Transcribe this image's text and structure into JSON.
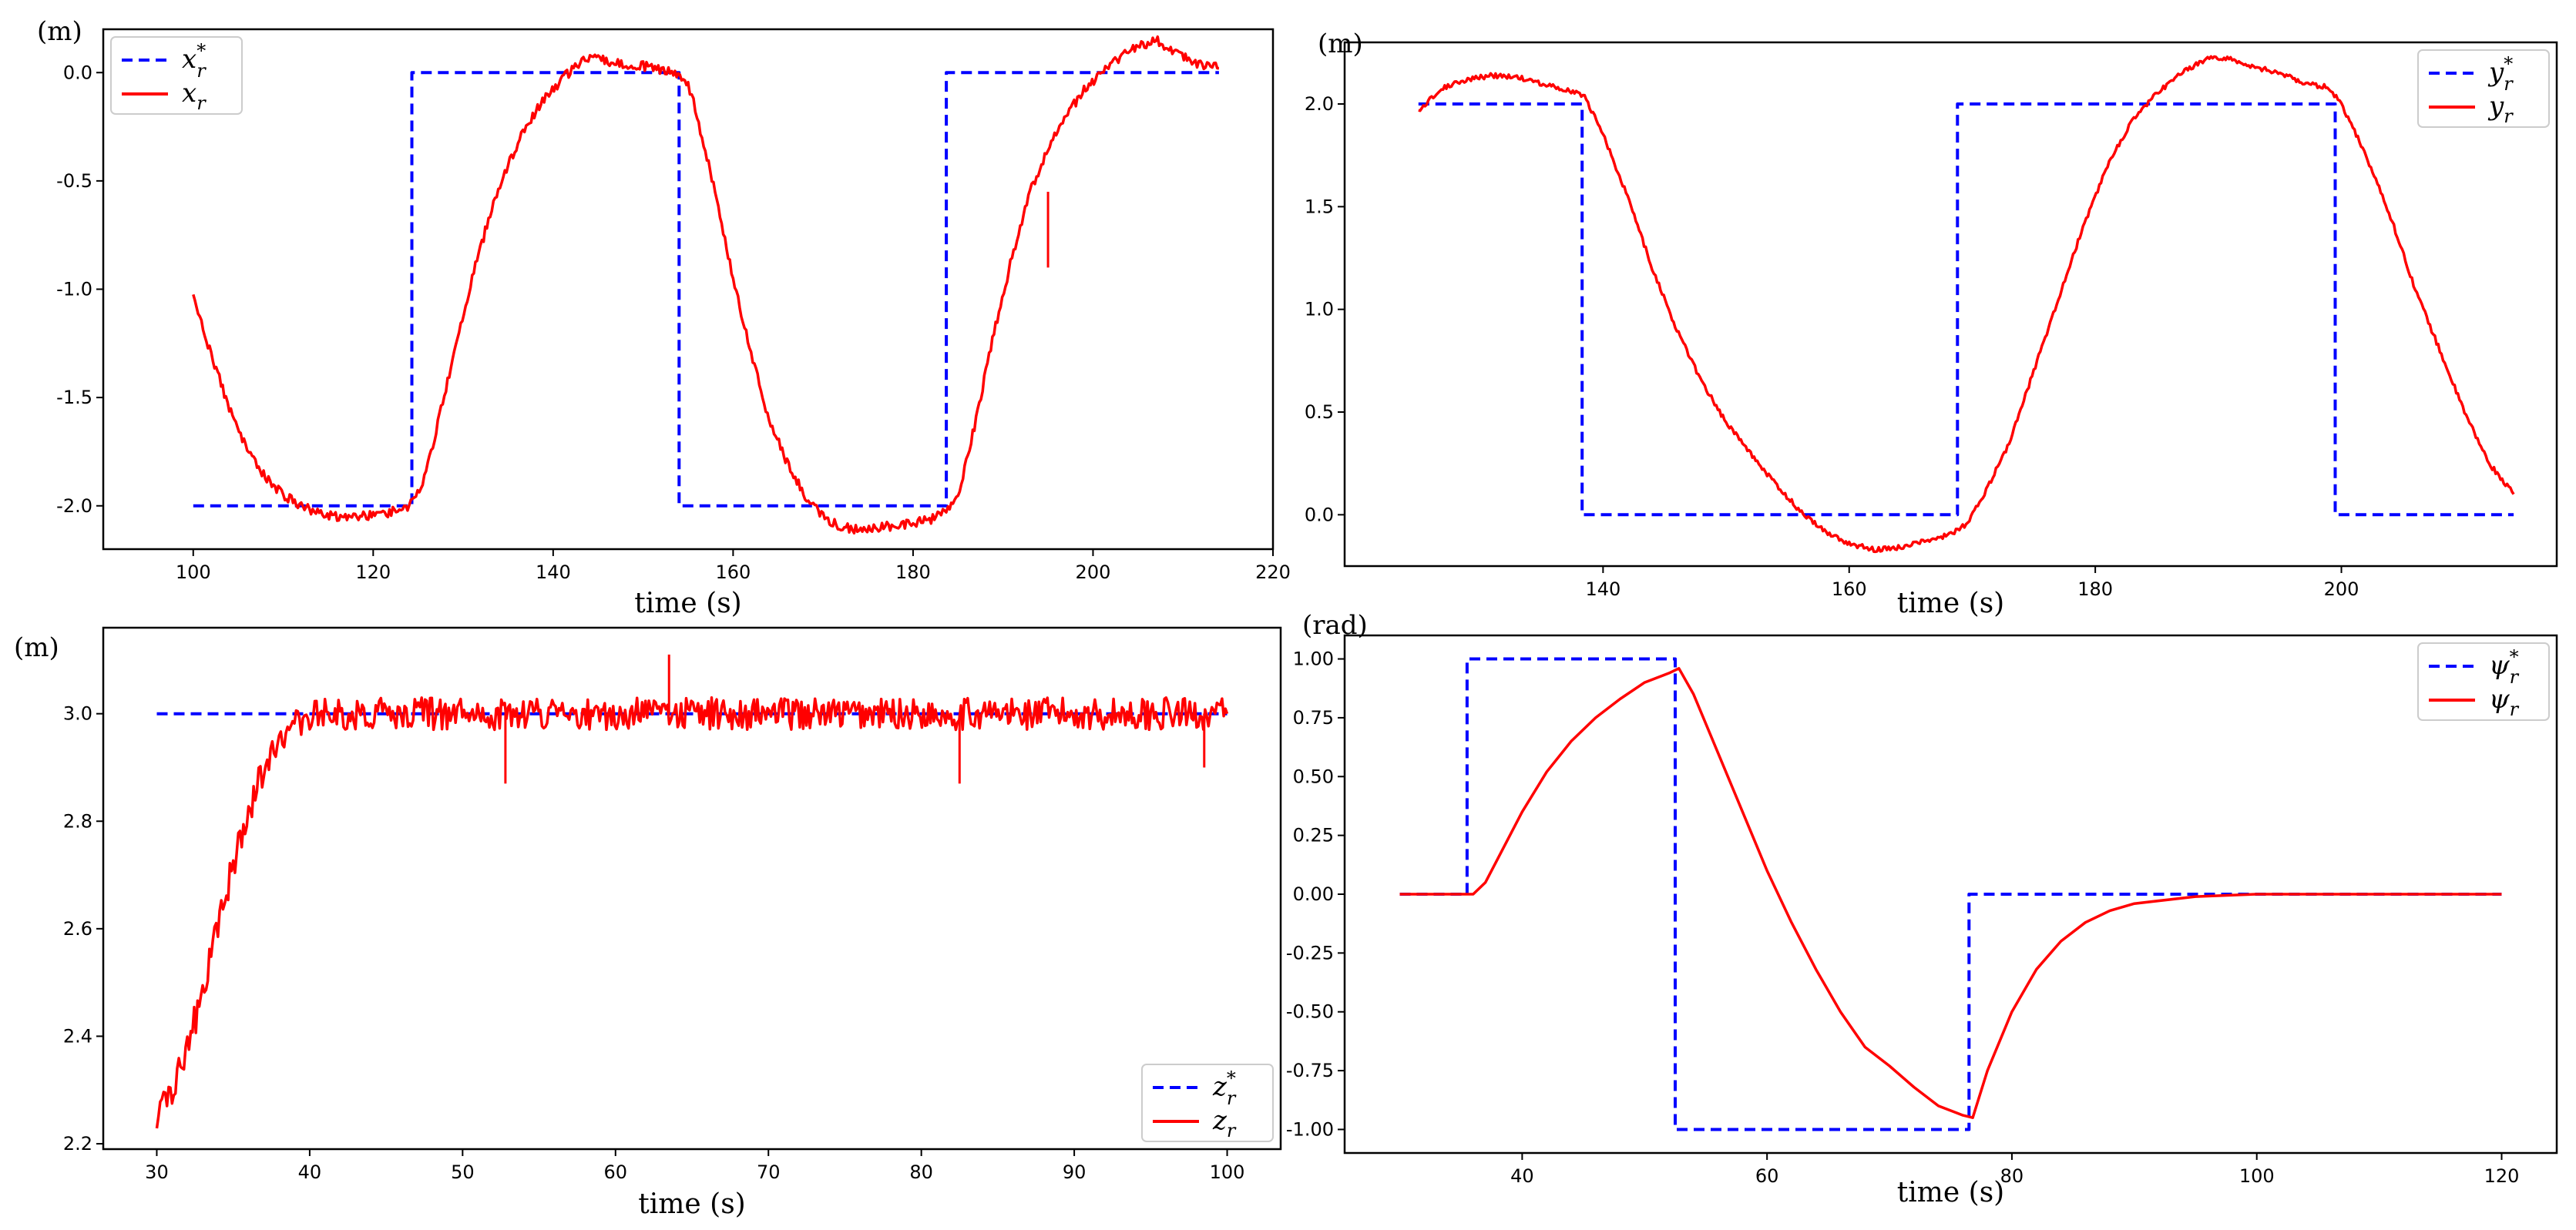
{
  "figure": {
    "background": "#ffffff",
    "reference_color": "#0000ff",
    "measured_color": "#ff0000"
  },
  "chart_data": [
    {
      "id": "x",
      "type": "line",
      "xlabel": "time (s)",
      "ylabel": "(m)",
      "xlim": [
        90,
        220
      ],
      "ylim": [
        -2.2,
        0.2
      ],
      "xticks": [
        100,
        120,
        140,
        160,
        180,
        200,
        220
      ],
      "yticks": [
        -2.0,
        -1.5,
        -1.0,
        -0.5,
        0.0
      ],
      "ytick_decimals": 1,
      "legend_position": "top-left",
      "series": [
        {
          "name": "x_r*",
          "legend_main": "x",
          "legend_sub": "r",
          "legend_sup": "*",
          "style": "dashed",
          "color": "#0000ff",
          "points": [
            [
              100,
              -2.0
            ],
            [
              124.3,
              -2.0
            ],
            [
              124.3,
              0.0
            ],
            [
              154,
              0.0
            ],
            [
              154,
              -2.0
            ],
            [
              183.7,
              -2.0
            ],
            [
              183.7,
              0.0
            ],
            [
              214,
              0.0
            ]
          ]
        },
        {
          "name": "x_r",
          "legend_main": "x",
          "legend_sub": "r",
          "legend_sup": "",
          "style": "solid",
          "color": "#ff0000",
          "noise": 0.022,
          "points": [
            [
              100,
              -1.03
            ],
            [
              102,
              -1.3
            ],
            [
              104,
              -1.55
            ],
            [
              106,
              -1.74
            ],
            [
              108,
              -1.87
            ],
            [
              110,
              -1.95
            ],
            [
              112,
              -2.0
            ],
            [
              114,
              -2.04
            ],
            [
              116,
              -2.05
            ],
            [
              118,
              -2.05
            ],
            [
              120,
              -2.04
            ],
            [
              122,
              -2.03
            ],
            [
              124,
              -2.0
            ],
            [
              125.5,
              -1.9
            ],
            [
              127,
              -1.65
            ],
            [
              129,
              -1.3
            ],
            [
              131,
              -0.95
            ],
            [
              133,
              -0.65
            ],
            [
              135,
              -0.42
            ],
            [
              137,
              -0.25
            ],
            [
              139,
              -0.12
            ],
            [
              141,
              -0.03
            ],
            [
              143,
              0.05
            ],
            [
              145,
              0.07
            ],
            [
              147,
              0.04
            ],
            [
              150,
              0.03
            ],
            [
              153,
              0.01
            ],
            [
              155,
              -0.05
            ],
            [
              156,
              -0.2
            ],
            [
              158,
              -0.55
            ],
            [
              160,
              -0.95
            ],
            [
              162,
              -1.3
            ],
            [
              164,
              -1.6
            ],
            [
              166,
              -1.8
            ],
            [
              168,
              -1.95
            ],
            [
              170,
              -2.05
            ],
            [
              172,
              -2.1
            ],
            [
              174,
              -2.11
            ],
            [
              176,
              -2.1
            ],
            [
              178,
              -2.09
            ],
            [
              180,
              -2.08
            ],
            [
              182,
              -2.06
            ],
            [
              183.5,
              -2.03
            ],
            [
              185,
              -1.95
            ],
            [
              187,
              -1.6
            ],
            [
              189,
              -1.2
            ],
            [
              191,
              -0.85
            ],
            [
              193,
              -0.55
            ],
            [
              195,
              -0.35
            ],
            [
              197,
              -0.2
            ],
            [
              199,
              -0.08
            ],
            [
              201,
              0.0
            ],
            [
              203,
              0.07
            ],
            [
              205,
              0.12
            ],
            [
              207,
              0.15
            ],
            [
              209,
              0.1
            ],
            [
              211,
              0.05
            ],
            [
              214,
              0.02
            ]
          ]
        }
      ],
      "spikes": [
        {
          "series": 1,
          "x": 195,
          "y_from": -0.55,
          "y_to": -0.9
        }
      ]
    },
    {
      "id": "y",
      "type": "line",
      "xlabel": "time (s)",
      "ylabel": "(m)",
      "xlim": [
        119,
        217.5
      ],
      "ylim": [
        -0.25,
        2.3
      ],
      "xticks": [
        140,
        160,
        180,
        200
      ],
      "yticks": [
        0.0,
        0.5,
        1.0,
        1.5,
        2.0
      ],
      "ytick_decimals": 1,
      "legend_position": "top-right",
      "series": [
        {
          "name": "y_r*",
          "legend_main": "y",
          "legend_sub": "r",
          "legend_sup": "*",
          "style": "dashed",
          "color": "#0000ff",
          "points": [
            [
              125,
              2.0
            ],
            [
              138.3,
              2.0
            ],
            [
              138.3,
              0.0
            ],
            [
              168.8,
              0.0
            ],
            [
              168.8,
              2.0
            ],
            [
              199.5,
              2.0
            ],
            [
              199.5,
              0.0
            ],
            [
              214,
              0.0
            ]
          ]
        },
        {
          "name": "y_r",
          "legend_main": "y",
          "legend_sub": "r",
          "legend_sup": "",
          "style": "solid",
          "color": "#ff0000",
          "noise": 0.012,
          "points": [
            [
              125,
              1.97
            ],
            [
              127,
              2.08
            ],
            [
              129,
              2.12
            ],
            [
              131,
              2.14
            ],
            [
              133,
              2.13
            ],
            [
              135,
              2.1
            ],
            [
              137,
              2.07
            ],
            [
              138.5,
              2.04
            ],
            [
              140,
              1.85
            ],
            [
              142,
              1.55
            ],
            [
              144,
              1.2
            ],
            [
              146,
              0.9
            ],
            [
              148,
              0.65
            ],
            [
              150,
              0.45
            ],
            [
              152,
              0.3
            ],
            [
              154,
              0.15
            ],
            [
              156,
              0.02
            ],
            [
              158,
              -0.08
            ],
            [
              160,
              -0.14
            ],
            [
              162,
              -0.17
            ],
            [
              164,
              -0.16
            ],
            [
              166,
              -0.13
            ],
            [
              168,
              -0.1
            ],
            [
              169.5,
              -0.05
            ],
            [
              171,
              0.1
            ],
            [
              173,
              0.35
            ],
            [
              175,
              0.7
            ],
            [
              177,
              1.05
            ],
            [
              179,
              1.4
            ],
            [
              181,
              1.7
            ],
            [
              183,
              1.92
            ],
            [
              185,
              2.05
            ],
            [
              187,
              2.15
            ],
            [
              189,
              2.22
            ],
            [
              191,
              2.22
            ],
            [
              193,
              2.18
            ],
            [
              195,
              2.15
            ],
            [
              197,
              2.1
            ],
            [
              199,
              2.08
            ],
            [
              200,
              2.0
            ],
            [
              202,
              1.75
            ],
            [
              204,
              1.45
            ],
            [
              206,
              1.1
            ],
            [
              208,
              0.8
            ],
            [
              210,
              0.5
            ],
            [
              212,
              0.25
            ],
            [
              214,
              0.1
            ]
          ]
        }
      ],
      "spikes": []
    },
    {
      "id": "z",
      "type": "line",
      "xlabel": "time (s)",
      "ylabel": "(m)",
      "xlim": [
        26.5,
        103.5
      ],
      "ylim": [
        2.19,
        3.16
      ],
      "xticks": [
        30,
        40,
        50,
        60,
        70,
        80,
        90,
        100
      ],
      "yticks": [
        2.2,
        2.4,
        2.6,
        2.8,
        3.0
      ],
      "ytick_decimals": 1,
      "legend_position": "bottom-right",
      "series": [
        {
          "name": "z_r*",
          "legend_main": "z",
          "legend_sub": "r",
          "legend_sup": "*",
          "style": "dashed",
          "color": "#0000ff",
          "points": [
            [
              30,
              3.0
            ],
            [
              100,
              3.0
            ]
          ]
        },
        {
          "name": "z_r",
          "legend_main": "z",
          "legend_sub": "r",
          "legend_sup": "",
          "style": "solid",
          "color": "#ff0000",
          "noise": 0.03,
          "points": [
            [
              30,
              2.24
            ],
            [
              31,
              2.3
            ],
            [
              32,
              2.38
            ],
            [
              33,
              2.48
            ],
            [
              34,
              2.6
            ],
            [
              35,
              2.72
            ],
            [
              36,
              2.82
            ],
            [
              37,
              2.9
            ],
            [
              38,
              2.95
            ],
            [
              39,
              2.98
            ],
            [
              40,
              3.0
            ],
            [
              100,
              3.0
            ]
          ]
        }
      ],
      "spikes": [
        {
          "series": 1,
          "x": 52.8,
          "y_from": 3.0,
          "y_to": 2.87
        },
        {
          "series": 1,
          "x": 63.5,
          "y_from": 3.0,
          "y_to": 3.11
        },
        {
          "series": 1,
          "x": 82.5,
          "y_from": 3.0,
          "y_to": 2.87
        },
        {
          "series": 1,
          "x": 98.5,
          "y_from": 3.0,
          "y_to": 2.9
        }
      ]
    },
    {
      "id": "psi",
      "type": "line",
      "xlabel": "time (s)",
      "ylabel": "(rad)",
      "xlim": [
        25.5,
        124.5
      ],
      "ylim": [
        -1.1,
        1.1
      ],
      "xticks": [
        40,
        60,
        80,
        100,
        120
      ],
      "yticks": [
        -1.0,
        -0.75,
        -0.5,
        -0.25,
        0.0,
        0.25,
        0.5,
        0.75,
        1.0
      ],
      "ytick_decimals": 2,
      "legend_position": "top-right",
      "series": [
        {
          "name": "psi_r*",
          "legend_main": "ψ",
          "legend_sub": "r",
          "legend_sup": "*",
          "style": "dashed",
          "color": "#0000ff",
          "points": [
            [
              30,
              0.0
            ],
            [
              35.5,
              0.0
            ],
            [
              35.5,
              1.0
            ],
            [
              52.5,
              1.0
            ],
            [
              52.5,
              -1.0
            ],
            [
              76.5,
              -1.0
            ],
            [
              76.5,
              0.0
            ],
            [
              120,
              0.0
            ]
          ]
        },
        {
          "name": "psi_r",
          "legend_main": "ψ",
          "legend_sub": "r",
          "legend_sup": "",
          "style": "solid",
          "color": "#ff0000",
          "noise": 0.0,
          "points": [
            [
              30,
              0.0
            ],
            [
              36,
              0.0
            ],
            [
              37,
              0.05
            ],
            [
              38,
              0.15
            ],
            [
              40,
              0.35
            ],
            [
              42,
              0.52
            ],
            [
              44,
              0.65
            ],
            [
              46,
              0.75
            ],
            [
              48,
              0.83
            ],
            [
              50,
              0.9
            ],
            [
              52,
              0.94
            ],
            [
              52.8,
              0.96
            ],
            [
              54,
              0.85
            ],
            [
              56,
              0.6
            ],
            [
              58,
              0.35
            ],
            [
              60,
              0.1
            ],
            [
              62,
              -0.12
            ],
            [
              64,
              -0.32
            ],
            [
              66,
              -0.5
            ],
            [
              68,
              -0.65
            ],
            [
              70,
              -0.73
            ],
            [
              72,
              -0.82
            ],
            [
              74,
              -0.9
            ],
            [
              76,
              -0.94
            ],
            [
              76.8,
              -0.95
            ],
            [
              78,
              -0.75
            ],
            [
              80,
              -0.5
            ],
            [
              82,
              -0.32
            ],
            [
              84,
              -0.2
            ],
            [
              86,
              -0.12
            ],
            [
              88,
              -0.07
            ],
            [
              90,
              -0.04
            ],
            [
              95,
              -0.01
            ],
            [
              100,
              0.0
            ],
            [
              120,
              0.0
            ]
          ]
        }
      ],
      "spikes": []
    }
  ]
}
